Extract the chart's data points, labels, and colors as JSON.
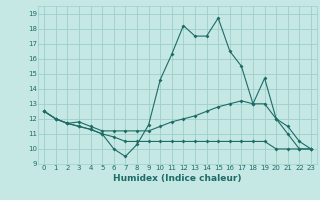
{
  "title": "",
  "xlabel": "Humidex (Indice chaleur)",
  "ylabel": "",
  "xlim": [
    -0.5,
    23.5
  ],
  "ylim": [
    9,
    19.5
  ],
  "yticks": [
    9,
    10,
    11,
    12,
    13,
    14,
    15,
    16,
    17,
    18,
    19
  ],
  "xticks": [
    0,
    1,
    2,
    3,
    4,
    5,
    6,
    7,
    8,
    9,
    10,
    11,
    12,
    13,
    14,
    15,
    16,
    17,
    18,
    19,
    20,
    21,
    22,
    23
  ],
  "bg_color": "#c5e8e5",
  "grid_color": "#9ecfcb",
  "line_color": "#1e6b65",
  "line1_x": [
    0,
    1,
    2,
    3,
    4,
    5,
    6,
    7,
    8,
    9,
    10,
    11,
    12,
    13,
    14,
    15,
    16,
    17,
    18,
    19,
    20,
    21,
    22,
    23
  ],
  "line1_y": [
    12.5,
    12.0,
    11.7,
    11.5,
    11.3,
    11.0,
    10.0,
    9.5,
    10.3,
    11.6,
    14.6,
    16.3,
    18.2,
    17.5,
    17.5,
    18.7,
    16.5,
    15.5,
    13.0,
    14.7,
    12.0,
    11.0,
    10.0,
    10.0
  ],
  "line2_x": [
    0,
    1,
    2,
    3,
    4,
    5,
    6,
    7,
    8,
    9,
    10,
    11,
    12,
    13,
    14,
    15,
    16,
    17,
    18,
    19,
    20,
    21,
    22,
    23
  ],
  "line2_y": [
    12.5,
    12.0,
    11.7,
    11.8,
    11.5,
    11.2,
    11.2,
    11.2,
    11.2,
    11.2,
    11.5,
    11.8,
    12.0,
    12.2,
    12.5,
    12.8,
    13.0,
    13.2,
    13.0,
    13.0,
    12.0,
    11.5,
    10.5,
    10.0
  ],
  "line3_x": [
    0,
    1,
    2,
    3,
    4,
    5,
    6,
    7,
    8,
    9,
    10,
    11,
    12,
    13,
    14,
    15,
    16,
    17,
    18,
    19,
    20,
    21,
    22,
    23
  ],
  "line3_y": [
    12.5,
    12.0,
    11.7,
    11.5,
    11.3,
    11.0,
    10.8,
    10.5,
    10.5,
    10.5,
    10.5,
    10.5,
    10.5,
    10.5,
    10.5,
    10.5,
    10.5,
    10.5,
    10.5,
    10.5,
    10.0,
    10.0,
    10.0,
    10.0
  ]
}
